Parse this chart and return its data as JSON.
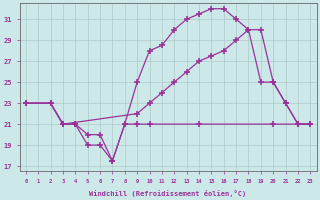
{
  "xlabel": "Windchill (Refroidissement éolien,°C)",
  "background_color": "#cde8e8",
  "grid_color": "#b0c8c8",
  "line_color": "#993399",
  "xlim": [
    -0.5,
    23.5
  ],
  "ylim": [
    16.5,
    32.5
  ],
  "xticks": [
    0,
    1,
    2,
    3,
    4,
    5,
    6,
    7,
    8,
    9,
    10,
    11,
    12,
    13,
    14,
    15,
    16,
    17,
    18,
    19,
    20,
    21,
    22,
    23
  ],
  "yticks": [
    17,
    19,
    21,
    23,
    25,
    27,
    29,
    31
  ],
  "series": [
    {
      "x": [
        0,
        2,
        3,
        4,
        5,
        6,
        7,
        8,
        9,
        10,
        14,
        20,
        22,
        23
      ],
      "y": [
        23,
        23,
        21,
        21,
        20,
        20,
        17.5,
        21,
        21,
        21,
        21,
        21,
        21,
        21
      ]
    },
    {
      "x": [
        0,
        2,
        3,
        4,
        5,
        6,
        7,
        8,
        9,
        10,
        11,
        12,
        13,
        14,
        15,
        16,
        17,
        18,
        19,
        20,
        21,
        22,
        23
      ],
      "y": [
        23,
        23,
        21,
        21,
        19,
        19,
        17.5,
        21,
        25,
        28,
        28.5,
        30,
        31,
        31.5,
        32,
        32,
        31,
        30,
        25,
        25,
        23,
        21,
        21
      ]
    },
    {
      "x": [
        0,
        2,
        3,
        9,
        10,
        11,
        12,
        13,
        14,
        15,
        16,
        17,
        18,
        19,
        20,
        21,
        22,
        23
      ],
      "y": [
        23,
        23,
        21,
        22,
        23,
        24,
        25,
        26,
        27,
        27.5,
        28,
        29,
        30,
        30,
        25,
        23,
        21,
        21
      ]
    }
  ]
}
